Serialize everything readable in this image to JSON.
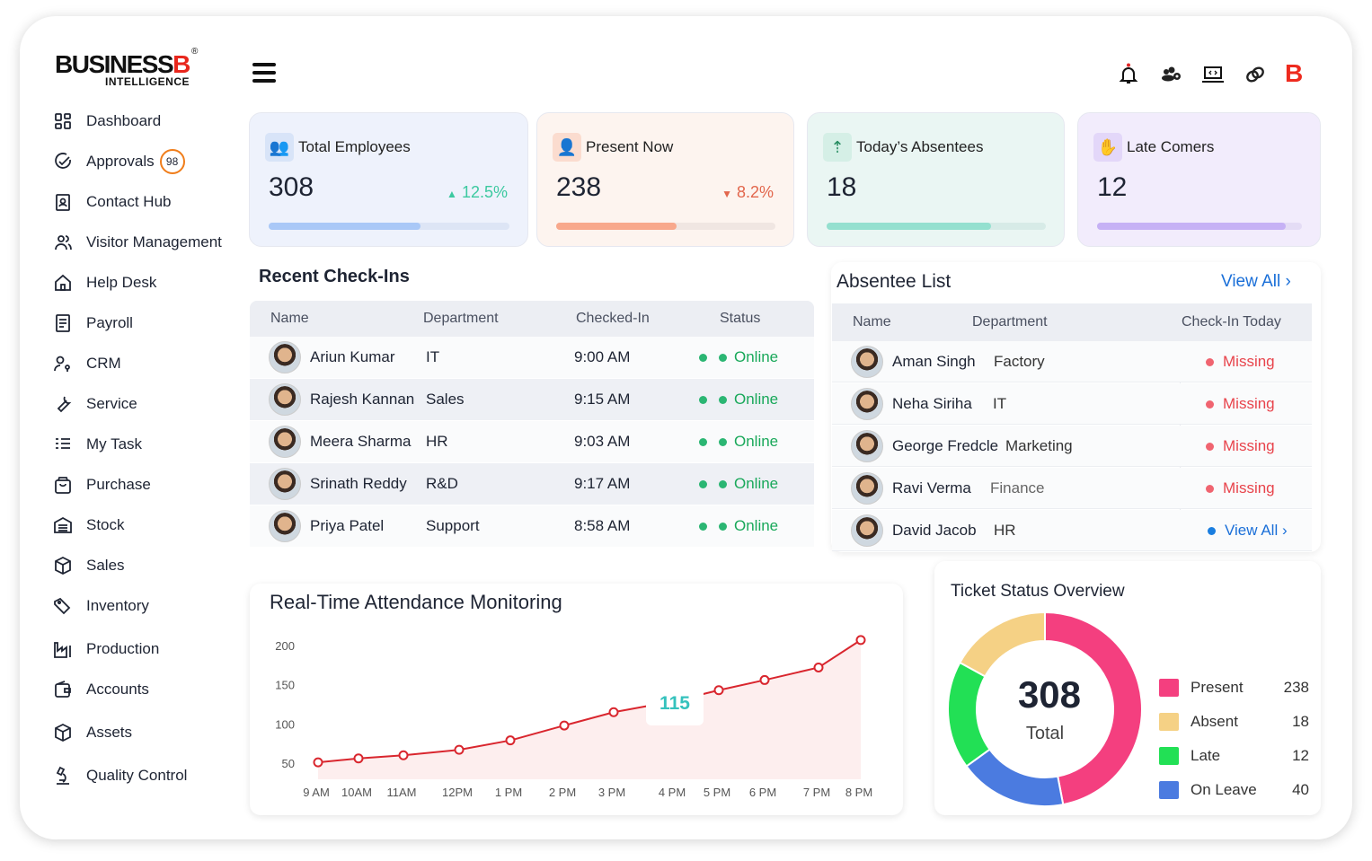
{
  "brand": {
    "name": "BUSINESS",
    "mark": "B",
    "tagline": "INTELLIGENCE",
    "reg": "®"
  },
  "sidebar": {
    "items": [
      {
        "label": "Dashboard",
        "icon": "grid-icon"
      },
      {
        "label": "Approvals",
        "icon": "check-circle-icon",
        "badge": "98"
      },
      {
        "label": "Contact Hub",
        "icon": "contact-card-icon"
      },
      {
        "label": "Visitor Management",
        "icon": "users-icon"
      },
      {
        "label": "Help Desk",
        "icon": "home-icon"
      },
      {
        "label": "Payroll",
        "icon": "document-icon"
      },
      {
        "label": "CRM",
        "icon": "user-key-icon"
      },
      {
        "label": "Service",
        "icon": "wrench-icon"
      },
      {
        "label": "My Task",
        "icon": "task-list-icon"
      },
      {
        "label": "Purchase",
        "icon": "shopping-bag-icon"
      },
      {
        "label": "Stock",
        "icon": "warehouse-icon"
      },
      {
        "label": "Sales",
        "icon": "box-icon"
      },
      {
        "label": "Inventory",
        "icon": "tags-icon"
      },
      {
        "label": "Production",
        "icon": "factory-icon"
      },
      {
        "label": "Accounts",
        "icon": "wallet-icon"
      },
      {
        "label": "Assets",
        "icon": "cube-icon"
      },
      {
        "label": "Quality Control",
        "icon": "microscope-icon"
      }
    ]
  },
  "header": {
    "icons": [
      "bell-icon",
      "team-settings-icon",
      "laptop-code-icon",
      "link-icon",
      "brand-b-icon"
    ]
  },
  "stats": [
    {
      "label": "Total Employees",
      "value": "308",
      "change": "12.5%",
      "trend": "up",
      "progress": 0.63,
      "color": "#a9c8f7",
      "track": "#dde5f5",
      "bg": "#eef2fc",
      "icon": "employees-icon"
    },
    {
      "label": "Present Now",
      "value": "238",
      "change": "8.2%",
      "trend": "down",
      "progress": 0.55,
      "color": "#f8a88c",
      "track": "#f0e6e2",
      "bg": "#fdf4ef",
      "icon": "person-icon"
    },
    {
      "label": "Today’s Absentees",
      "value": "18",
      "change": "",
      "trend": "",
      "progress": 0.75,
      "color": "#94e0cf",
      "track": "#d7ebe7",
      "bg": "#eaf6f3",
      "icon": "sort-list-icon"
    },
    {
      "label": "Late Comers",
      "value": "12",
      "change": "",
      "trend": "",
      "progress": 0.92,
      "color": "#c6b1f5",
      "track": "#e4dcf5",
      "bg": "#f2ecfc",
      "icon": "late-hand-icon"
    }
  ],
  "checkins": {
    "title": "Recent Check-Ins",
    "columns": [
      "Name",
      "Department",
      "Checked-In",
      "Status"
    ],
    "rows": [
      {
        "name": "Ariun Kumar",
        "dept": "IT",
        "time": "9:00 AM",
        "status": "Online"
      },
      {
        "name": "Rajesh Kannan",
        "dept": "Sales",
        "time": "9:15 AM",
        "status": "Online"
      },
      {
        "name": "Meera Sharma",
        "dept": "HR",
        "time": "9:03 AM",
        "status": "Online"
      },
      {
        "name": "Srinath Reddy",
        "dept": "R&D",
        "time": "9:17 AM",
        "status": "Online"
      },
      {
        "name": "Priya Patel",
        "dept": "Support",
        "time": "8:58 AM",
        "status": "Online"
      }
    ]
  },
  "absentees": {
    "title": "Absentee List",
    "view_all": "View All",
    "columns": [
      "Name",
      "Department",
      "Check-In Today"
    ],
    "rows": [
      {
        "name": "Aman Singh",
        "dept": "Factory",
        "status": "Missing"
      },
      {
        "name": "Neha Siriha",
        "dept": "IT",
        "status": "Missing"
      },
      {
        "name": "George Fredcle",
        "dept": "Marketing",
        "status": "Missing"
      },
      {
        "name": "Ravi Verma",
        "dept": "Finance",
        "status": "Missing"
      },
      {
        "name": "David Jacob",
        "dept": "HR",
        "status": "View All"
      }
    ]
  },
  "chart_data": [
    {
      "type": "area",
      "title": "Real-Time Attendance Monitoring",
      "categories": [
        "9 AM",
        "10AM",
        "11AM",
        "12PM",
        "1 PM",
        "2 PM",
        "3 PM",
        "4 PM",
        "5 PM",
        "6 PM",
        "7 PM",
        "8 PM"
      ],
      "values": [
        51,
        56,
        60,
        67,
        79,
        98,
        115,
        129,
        143,
        156,
        172,
        207
      ],
      "yticks": [
        50,
        100,
        150,
        200
      ],
      "ylim": [
        35,
        210
      ],
      "callout": "115",
      "line_color": "#d9262e",
      "fill_color": "#fdeeee",
      "grid": false
    },
    {
      "type": "pie",
      "title": "Ticket Status Overview",
      "center_value": "308",
      "center_label": "Total",
      "categories": [
        "Present",
        "Absent",
        "Late",
        "On Leave"
      ],
      "values": [
        238,
        18,
        12,
        40
      ],
      "colors": [
        "#f43f7f",
        "#f5d185",
        "#22e055",
        "#4b7be0"
      ]
    }
  ]
}
